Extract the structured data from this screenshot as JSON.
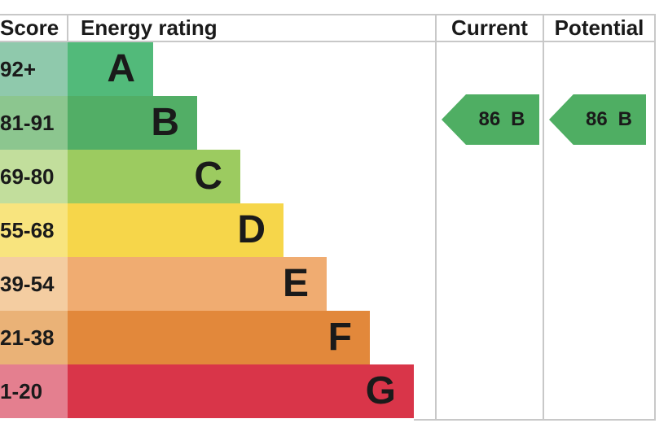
{
  "table": {
    "headers": {
      "score": "Score",
      "energy_rating": "Energy rating",
      "current": "Current",
      "potential": "Potential"
    }
  },
  "chart_data": {
    "type": "bar",
    "title": "Energy rating",
    "categories": [
      "A",
      "B",
      "C",
      "D",
      "E",
      "F",
      "G"
    ],
    "score_ranges": [
      "92+",
      "81-91",
      "69-80",
      "55-68",
      "39-54",
      "21-38",
      "1-20"
    ],
    "bands": [
      {
        "letter": "A",
        "range": "92+",
        "bar_color": "#52ba7a",
        "score_tint": "#8fc9ac"
      },
      {
        "letter": "B",
        "range": "81-91",
        "bar_color": "#52ae66",
        "score_tint": "#8cc68f"
      },
      {
        "letter": "C",
        "range": "69-80",
        "bar_color": "#9ccb60",
        "score_tint": "#c2de9c"
      },
      {
        "letter": "D",
        "range": "55-68",
        "bar_color": "#f6d64a",
        "score_tint": "#f8e47e"
      },
      {
        "letter": "E",
        "range": "39-54",
        "bar_color": "#f0ac71",
        "score_tint": "#f4cda1"
      },
      {
        "letter": "F",
        "range": "21-38",
        "bar_color": "#e2883b",
        "score_tint": "#eab277"
      },
      {
        "letter": "G",
        "range": "1-20",
        "bar_color": "#d93549",
        "score_tint": "#e47f8f"
      }
    ],
    "current": {
      "value": "86",
      "rating": "B",
      "arrow_color": "#4fae63",
      "aligned_row": "B"
    },
    "potential": {
      "value": "86",
      "rating": "B",
      "arrow_color": "#4fae63",
      "aligned_row": "B"
    }
  },
  "colors": {
    "border": "#c8c8c8",
    "text": "#1a1a1a",
    "background": "#ffffff"
  }
}
